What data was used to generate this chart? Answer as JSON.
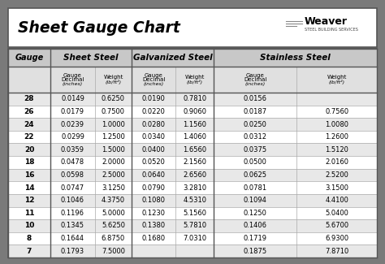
{
  "title": "Sheet Gauge Chart",
  "bg_outer": "#7a7a7a",
  "bg_title": "#ffffff",
  "bg_table": "#ffffff",
  "bg_header1": "#c8c8c8",
  "bg_header2": "#e0e0e0",
  "bg_row_odd": "#e8e8e8",
  "bg_row_even": "#ffffff",
  "gauges": [
    28,
    26,
    24,
    22,
    20,
    18,
    16,
    14,
    12,
    11,
    10,
    8,
    7
  ],
  "sheet_steel_decimal": [
    "0.0149",
    "0.0179",
    "0.0239",
    "0.0299",
    "0.0359",
    "0.0478",
    "0.0598",
    "0.0747",
    "0.1046",
    "0.1196",
    "0.1345",
    "0.1644",
    "0.1793"
  ],
  "sheet_steel_weight": [
    "0.6250",
    "0.7500",
    "1.0000",
    "1.2500",
    "1.5000",
    "2.0000",
    "2.5000",
    "3.1250",
    "4.3750",
    "5.0000",
    "5.6250",
    "6.8750",
    "7.5000"
  ],
  "galv_steel_decimal": [
    "0.0190",
    "0.0220",
    "0.0280",
    "0.0340",
    "0.0400",
    "0.0520",
    "0.0640",
    "0.0790",
    "0.1080",
    "0.1230",
    "0.1380",
    "0.1680",
    ""
  ],
  "galv_steel_weight": [
    "0.7810",
    "0.9060",
    "1.1560",
    "1.4060",
    "1.6560",
    "2.1560",
    "2.6560",
    "3.2810",
    "4.5310",
    "5.1560",
    "5.7810",
    "7.0310",
    ""
  ],
  "stainless_decimal": [
    "0.0156",
    "0.0187",
    "0.0250",
    "0.0312",
    "0.0375",
    "0.0500",
    "0.0625",
    "0.0781",
    "0.1094",
    "0.1250",
    "0.1406",
    "0.1719",
    "0.1875"
  ],
  "stainless_weight": [
    "",
    "0.7560",
    "1.0080",
    "1.2600",
    "1.5120",
    "2.0160",
    "2.5200",
    "3.1500",
    "4.4100",
    "5.0400",
    "5.6700",
    "6.9300",
    "7.8710"
  ]
}
